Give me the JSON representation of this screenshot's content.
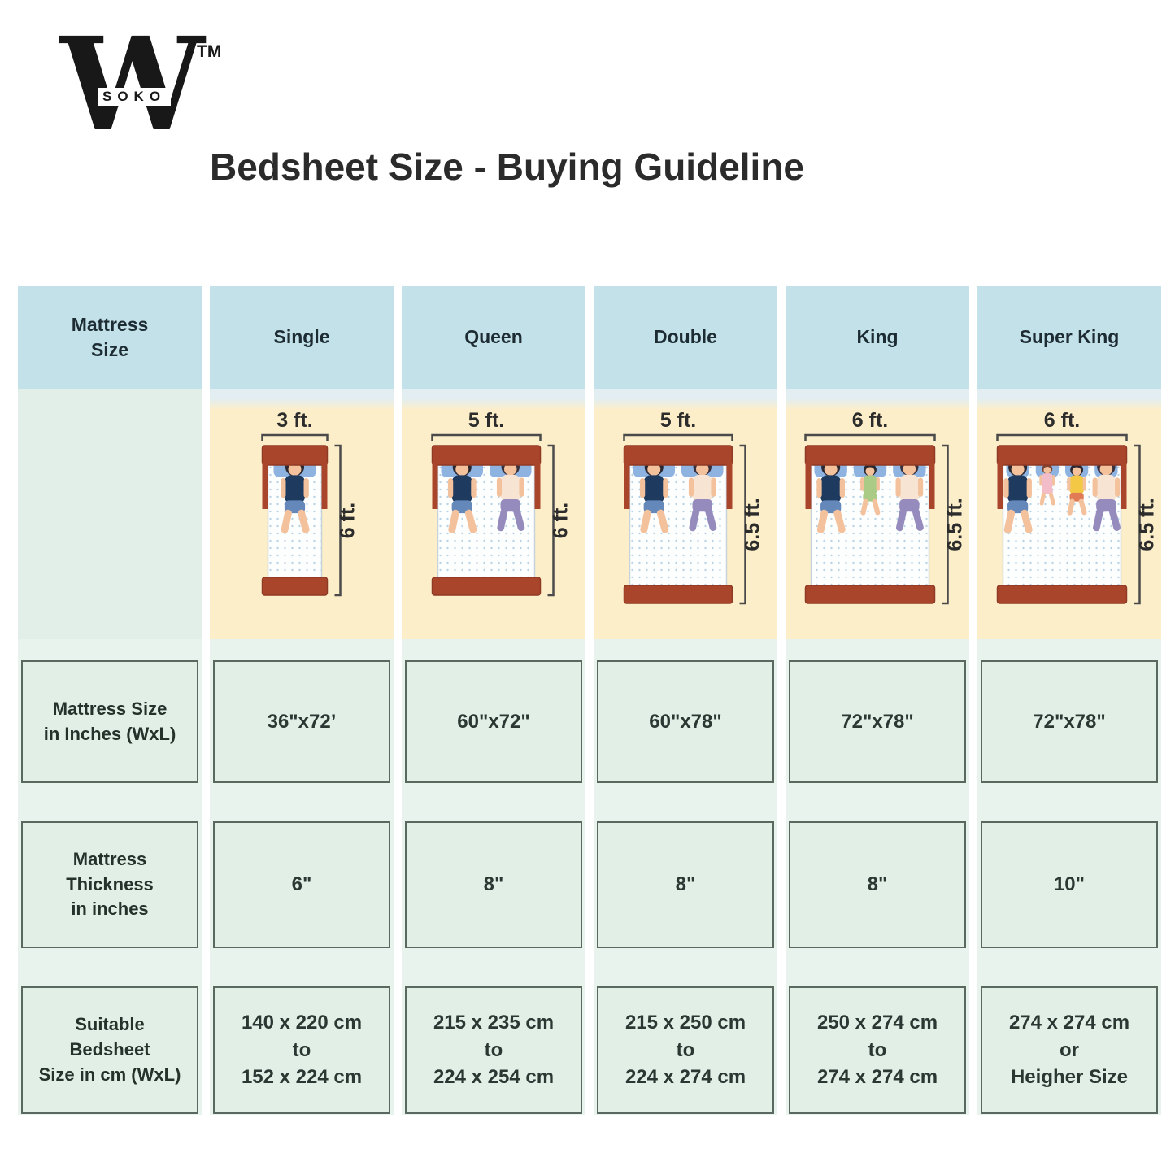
{
  "brand": {
    "logo_letter": "W",
    "logo_sub": "SOKO",
    "trademark": "TM"
  },
  "title": "Bedsheet Size - Buying Guideline",
  "table": {
    "corner_label": "Mattress\nSize",
    "row_labels": {
      "inches": "Mattress Size\nin Inches (WxL)",
      "thickness": "Mattress\nThickness\nin inches",
      "bedsheet": "Suitable\nBedsheet\nSize in cm (WxL)"
    },
    "columns": [
      {
        "name": "Single",
        "width_label": "3 ft.",
        "length_label": "6 ft.",
        "width_ft": 3,
        "length_ft": 6,
        "sleepers": [
          "man"
        ],
        "inches": "36\"x72’",
        "thickness": "6\"",
        "bedsheet": "140 x 220 cm\nto\n152 x 224 cm"
      },
      {
        "name": "Queen",
        "width_label": "5 ft.",
        "length_label": "6 ft.",
        "width_ft": 5,
        "length_ft": 6,
        "sleepers": [
          "man",
          "woman"
        ],
        "inches": "60\"x72\"",
        "thickness": "8\"",
        "bedsheet": "215 x 235 cm\nto\n224 x 254 cm"
      },
      {
        "name": "Double",
        "width_label": "5 ft.",
        "length_label": "6.5 ft.",
        "width_ft": 5,
        "length_ft": 6.5,
        "sleepers": [
          "man",
          "woman"
        ],
        "inches": "60\"x78\"",
        "thickness": "8\"",
        "bedsheet": "215 x 250 cm\nto\n224 x 274 cm"
      },
      {
        "name": "King",
        "width_label": "6 ft.",
        "length_label": "6.5 ft.",
        "width_ft": 6,
        "length_ft": 6.5,
        "sleepers": [
          "man",
          "child",
          "woman"
        ],
        "inches": "72\"x78\"",
        "thickness": "8\"",
        "bedsheet": "250 x 274 cm\nto\n274 x 274 cm"
      },
      {
        "name": "Super King",
        "width_label": "6 ft.",
        "length_label": "6.5 ft.",
        "width_ft": 6,
        "length_ft": 6.5,
        "sleepers": [
          "man",
          "baby",
          "boy",
          "woman"
        ],
        "inches": "72\"x78\"",
        "thickness": "10\"",
        "bedsheet": "274 x 274 cm\nor\nHeigher Size"
      }
    ]
  },
  "colors": {
    "header_blue": "#c3e1e9",
    "illustration_cream": "#fdeeca",
    "cell_green": "#e2efe7",
    "band_green": "#e9f3ee",
    "cell_border": "#5a695f",
    "bed_frame_brown": "#a8452b",
    "pillow_blue": "#8fb3e0",
    "title_text": "#2b2b2b"
  }
}
